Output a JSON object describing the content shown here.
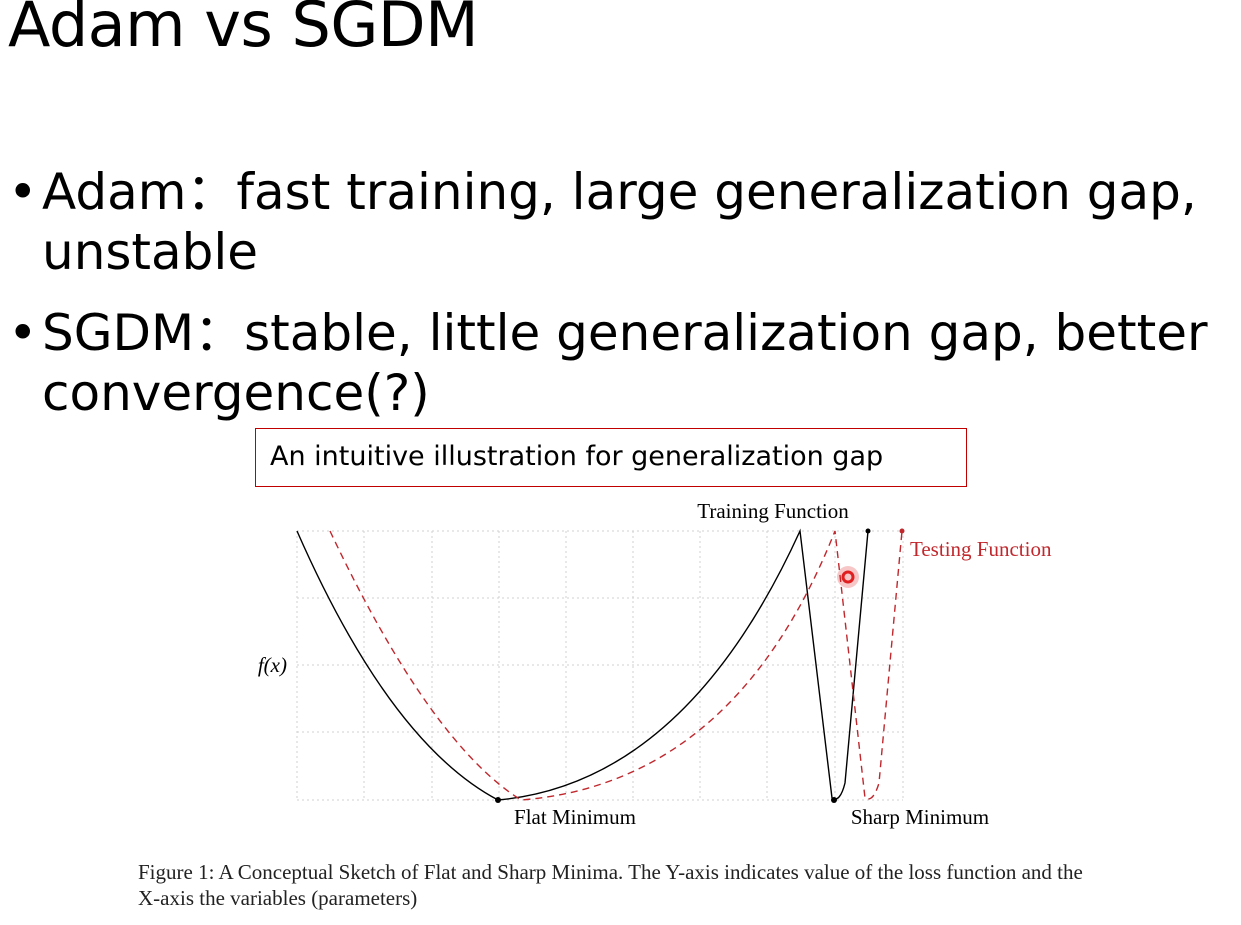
{
  "slide": {
    "title": "Adam vs SGDM",
    "bullets": [
      {
        "marker": "•",
        "text": "Adam：fast training, large generalization gap, unstable"
      },
      {
        "marker": "•",
        "text": "SGDM：stable, little generalization gap, better convergence(?)"
      }
    ],
    "callout": "An intuitive illustration for generalization gap"
  },
  "figure": {
    "labels": {
      "training": "Training Function",
      "testing": "Testing Function",
      "yaxis": "f(x)",
      "flat_min": "Flat Minimum",
      "sharp_min": "Sharp Minimum"
    },
    "caption": "Figure 1: A Conceptual Sketch of Flat and Sharp Minima. The Y-axis indicates value of the loss function and the X-axis the variables (parameters)",
    "colors": {
      "training": "#000000",
      "testing": "#c0282d",
      "grid": "#d0d0d0",
      "callout_border": "#c00000",
      "cursor": "#e02020"
    }
  }
}
